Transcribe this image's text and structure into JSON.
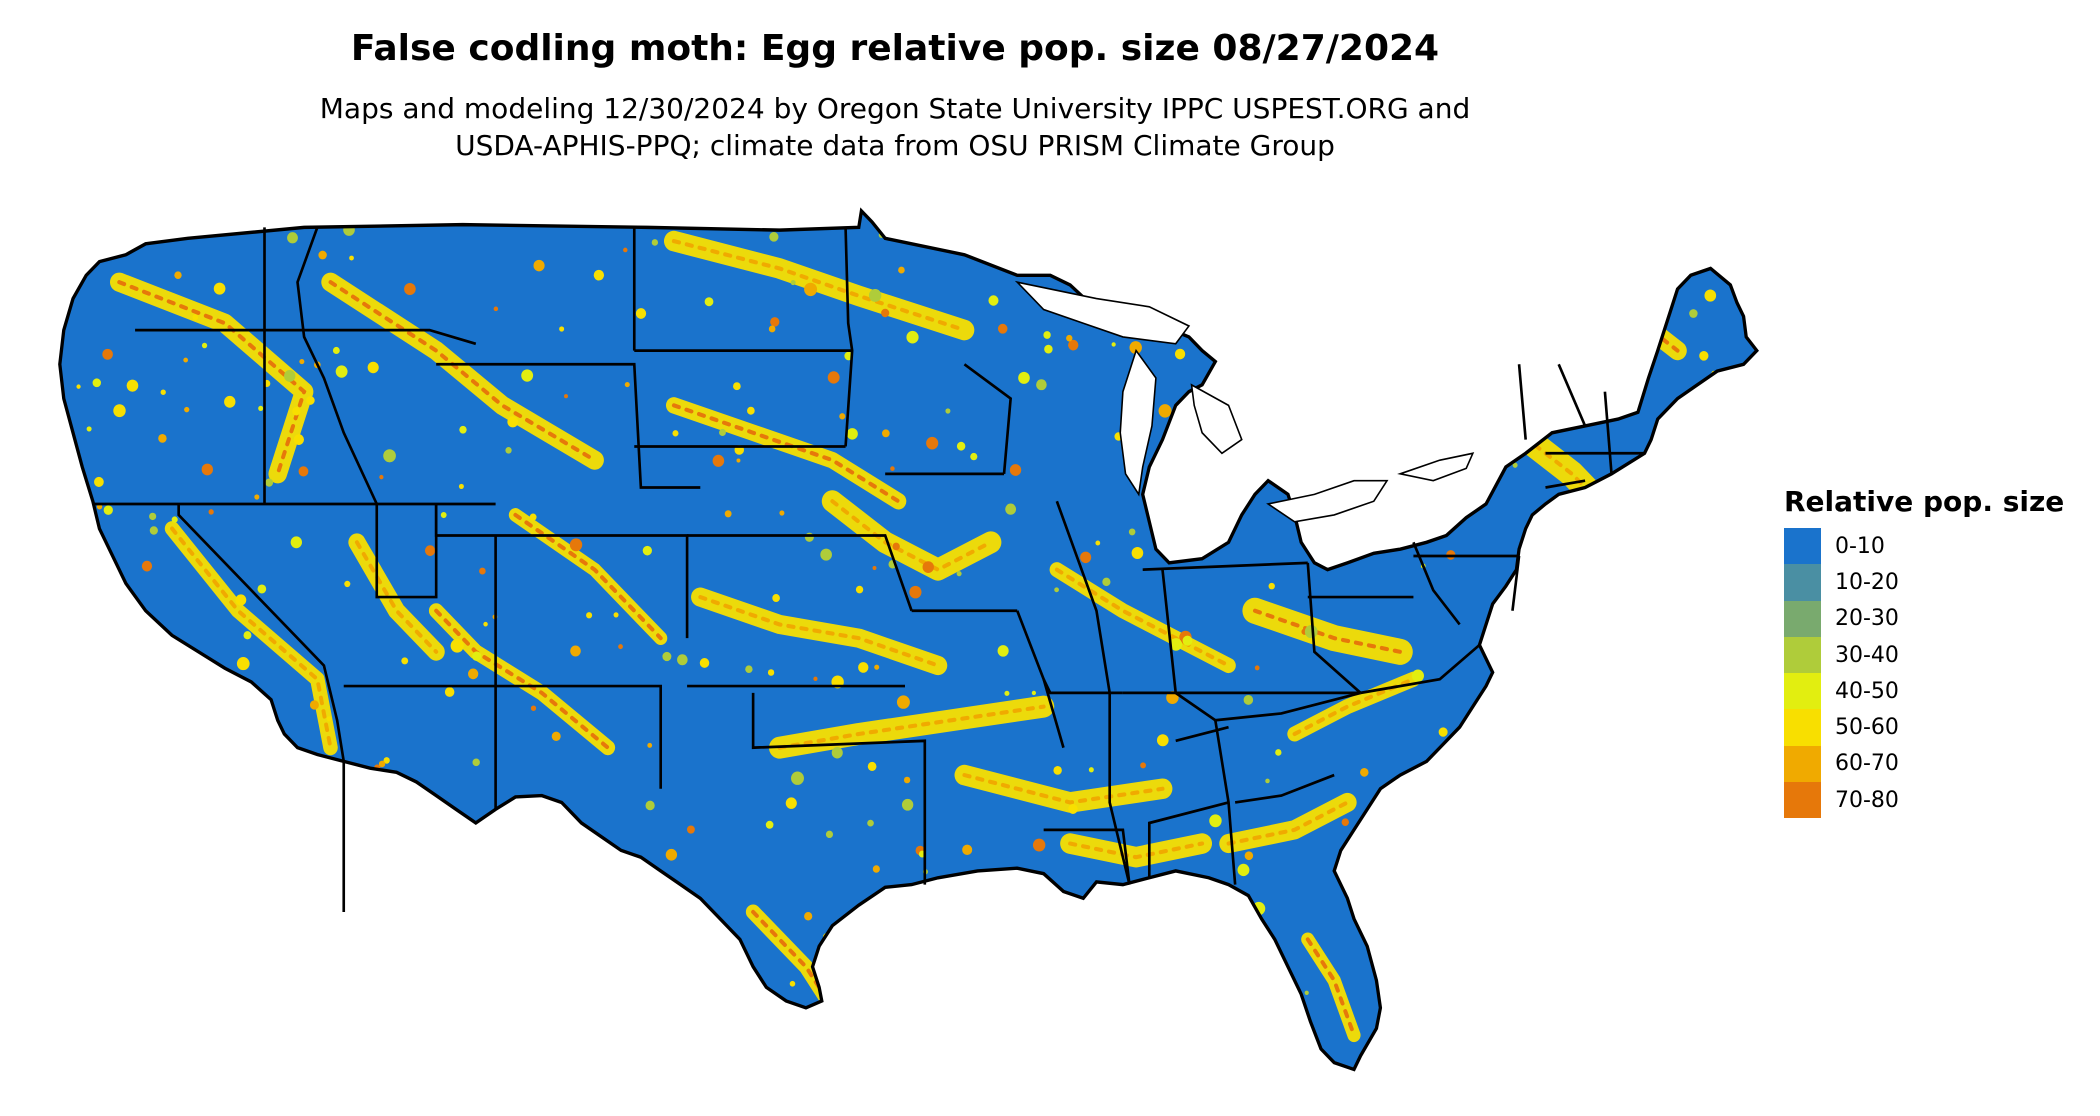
{
  "title": "False codling moth: Egg relative pop. size 08/27/2024",
  "subtitle_line1": "Maps and modeling 12/30/2024 by Oregon State University IPPC USPEST.ORG and",
  "subtitle_line2": "USDA-APHIS-PPQ; climate data from OSU PRISM Climate Group",
  "legend": {
    "title": "Relative pop. size",
    "items": [
      {
        "label": "0-10",
        "color": "#1a73cc"
      },
      {
        "label": "10-20",
        "color": "#4a8fa3"
      },
      {
        "label": "20-30",
        "color": "#79aa6e"
      },
      {
        "label": "30-40",
        "color": "#afcc3a"
      },
      {
        "label": "40-50",
        "color": "#e2ee10"
      },
      {
        "label": "50-60",
        "color": "#f8df00"
      },
      {
        "label": "60-70",
        "color": "#f0aa00"
      },
      {
        "label": "70-80",
        "color": "#e6780a"
      }
    ]
  },
  "map": {
    "base_color": "#1a73cc",
    "border_color": "#000000"
  }
}
